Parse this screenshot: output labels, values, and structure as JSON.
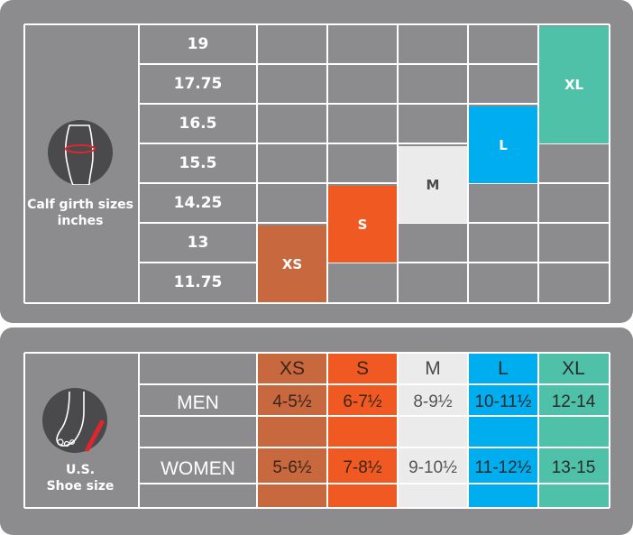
{
  "top": {
    "caption_line1": "Calf girth sizes",
    "caption_line2": "inches",
    "girth_values": [
      "19",
      "17.75",
      "16.5",
      "15.5",
      "14.25",
      "13",
      "11.75"
    ],
    "sizes": [
      "XS",
      "S",
      "M",
      "L",
      "XL"
    ]
  },
  "bottom": {
    "caption_line1": "U.S.",
    "caption_line2": "Shoe size",
    "headers": [
      "XS",
      "S",
      "M",
      "L",
      "XL"
    ],
    "men_label": "MEN",
    "women_label": "WOMEN",
    "men": [
      "4-5½",
      "6-7½",
      "8-9½",
      "10-11½",
      "12-14"
    ],
    "women": [
      "5-6½",
      "7-8½",
      "9-10½",
      "11-12½",
      "13-15"
    ]
  },
  "colors": {
    "panel": "#8c8c8e",
    "grid": "#ffffff",
    "xs": "#c8683f",
    "s": "#f05a22",
    "m": "#ebebeb",
    "l": "#00aeef",
    "xl": "#4fc1a9",
    "icon_bg": "#4a4a4c",
    "icon_accent": "#e0262c"
  }
}
